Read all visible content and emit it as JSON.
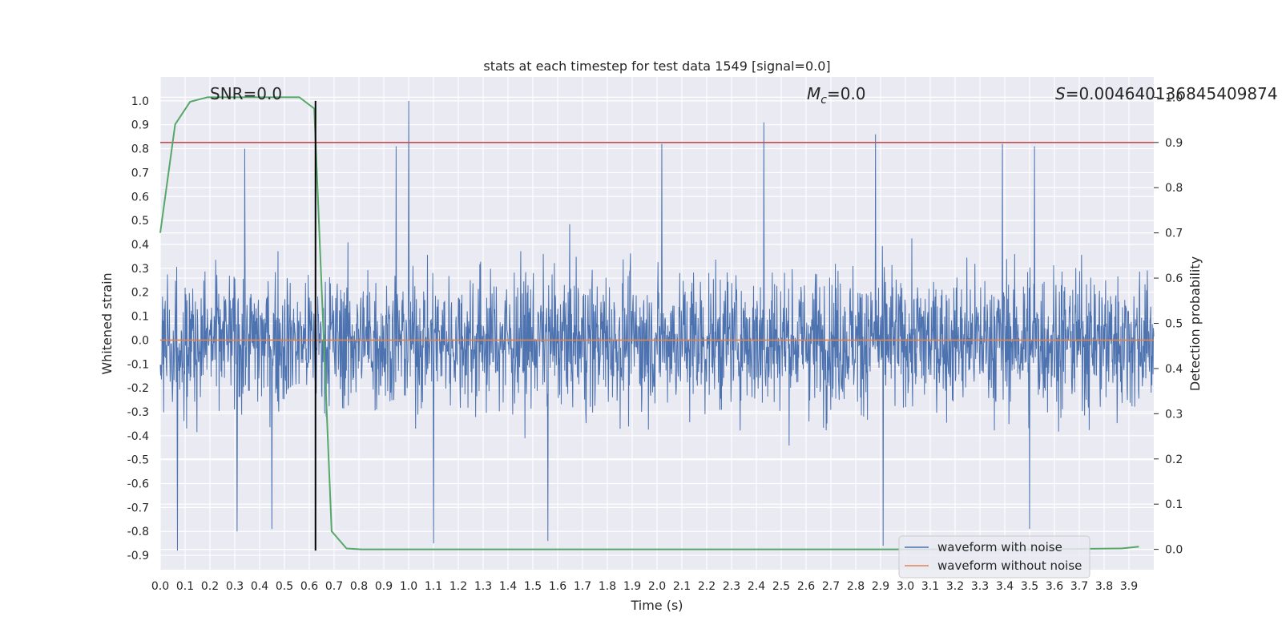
{
  "chart_data": {
    "type": "line",
    "title": "stats at each timestep for test data 1549 [signal=0.0]",
    "xlabel": "Time (s)",
    "ylabel": "Whitened strain",
    "ylabel_right": "Detection probability",
    "xlim": [
      0.0,
      4.0
    ],
    "ylim": [
      -0.96,
      1.1
    ],
    "ylim_right": [
      -0.045,
      1.045
    ],
    "x_ticks": [
      "0.0",
      "0.1",
      "0.2",
      "0.3",
      "0.4",
      "0.5",
      "0.6",
      "0.7",
      "0.8",
      "0.9",
      "1.0",
      "1.1",
      "1.2",
      "1.3",
      "1.4",
      "1.5",
      "1.6",
      "1.7",
      "1.8",
      "1.9",
      "2.0",
      "2.1",
      "2.2",
      "2.3",
      "2.4",
      "2.5",
      "2.6",
      "2.7",
      "2.8",
      "2.9",
      "3.0",
      "3.1",
      "3.2",
      "3.3",
      "3.4",
      "3.5",
      "3.6",
      "3.7",
      "3.8",
      "3.9"
    ],
    "y_ticks": [
      "1.0",
      "0.9",
      "0.8",
      "0.7",
      "0.6",
      "0.5",
      "0.4",
      "0.3",
      "0.2",
      "0.1",
      "0.0",
      "-0.1",
      "-0.2",
      "-0.3",
      "-0.4",
      "-0.5",
      "-0.6",
      "-0.7",
      "-0.8",
      "-0.9"
    ],
    "y_ticks_right": [
      "1.0",
      "0.9",
      "0.8",
      "0.7",
      "0.6",
      "0.5",
      "0.4",
      "0.3",
      "0.2",
      "0.1",
      "0.0"
    ],
    "annotations": {
      "snr": "SNR=0.0",
      "mc_symbol": "M",
      "mc_sub": "c",
      "mc_value": "=0.0",
      "s_symbol": "S",
      "s_value": "=0.004640136845409874"
    },
    "legend": {
      "placement": "lower-right",
      "entries": [
        {
          "label": "waveform with noise",
          "color": "#4c72b0"
        },
        {
          "label": "waveform without noise",
          "color": "#dd8452"
        }
      ]
    },
    "series": [
      {
        "name": "waveform with noise",
        "color": "#4c72b0",
        "axis": "left",
        "description": "dense noise, roughly -0.9 to 1.0",
        "peaks": [
          {
            "x": 1.0,
            "y": 1.0
          },
          {
            "x": 2.43,
            "y": 0.91
          },
          {
            "x": 2.88,
            "y": 0.86
          },
          {
            "x": 0.34,
            "y": 0.8
          },
          {
            "x": 2.02,
            "y": 0.82
          },
          {
            "x": 3.39,
            "y": 0.82
          },
          {
            "x": 3.52,
            "y": 0.81
          },
          {
            "x": 0.95,
            "y": 0.81
          }
        ],
        "troughs": [
          {
            "x": 0.07,
            "y": -0.88
          },
          {
            "x": 2.91,
            "y": -0.86
          },
          {
            "x": 1.1,
            "y": -0.85
          },
          {
            "x": 1.56,
            "y": -0.84
          },
          {
            "x": 0.31,
            "y": -0.8
          },
          {
            "x": 0.45,
            "y": -0.79
          },
          {
            "x": 3.5,
            "y": -0.79
          }
        ]
      },
      {
        "name": "waveform without noise",
        "color": "#dd8452",
        "axis": "left",
        "x": [
          0.0,
          4.0
        ],
        "y": [
          0.0,
          0.0
        ]
      },
      {
        "color": "#55a868",
        "axis": "right",
        "x": [
          0.0,
          0.06,
          0.12,
          0.19,
          0.25,
          0.31,
          0.37,
          0.44,
          0.5,
          0.56,
          0.62,
          0.69,
          0.75,
          0.81,
          0.87,
          0.94,
          1.0,
          1.5,
          2.0,
          2.5,
          3.0,
          3.5,
          3.87,
          3.94
        ],
        "y": [
          0.7,
          0.94,
          0.99,
          1.0,
          1.0,
          1.0,
          1.0,
          1.0,
          1.0,
          1.0,
          0.975,
          0.04,
          0.002,
          0.0,
          0.0,
          0.0,
          0.0,
          0.0,
          0.0,
          0.0,
          0.0,
          0.0,
          0.002,
          0.006
        ]
      }
    ],
    "reference_lines": [
      {
        "type": "horizontal",
        "axis": "right",
        "y": 0.9,
        "color": "#c44e52"
      },
      {
        "type": "vertical",
        "x": 0.625,
        "y_range": [
          -0.88,
          1.0
        ],
        "color": "#000000"
      }
    ],
    "grid": true,
    "background_color": "#eaeaf2"
  }
}
